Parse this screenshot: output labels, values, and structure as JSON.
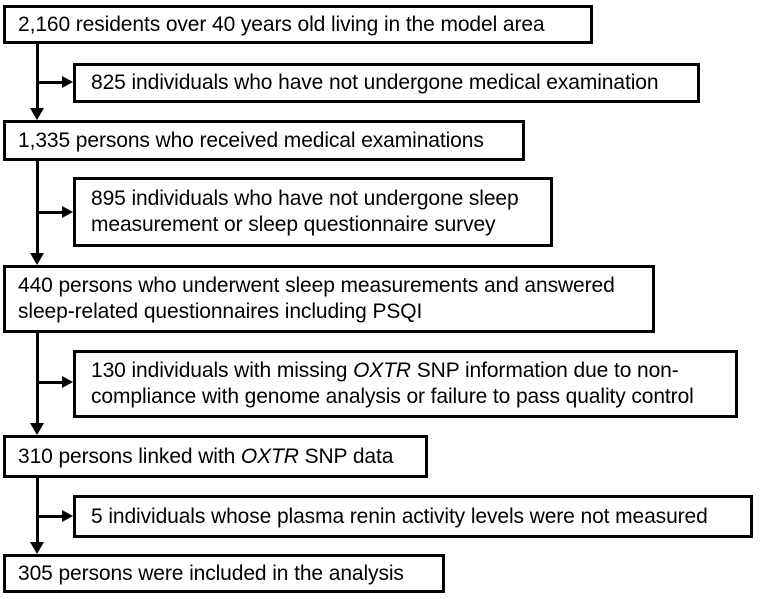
{
  "figure": {
    "type": "participant-flow-diagram",
    "background_color": "#ffffff",
    "line_color": "#000000",
    "main_boxes": [
      {
        "id": "residents",
        "count": "2,160",
        "lines": [
          [
            {
              "t": "2,160 residents over 40 years old living in the model area"
            }
          ]
        ]
      },
      {
        "id": "examined",
        "count": "1,335",
        "lines": [
          [
            {
              "t": "1,335 persons who received medical examinations"
            }
          ]
        ]
      },
      {
        "id": "sleep-measured",
        "count": "440",
        "lines": [
          [
            {
              "t": "440 persons who underwent sleep measurements and answered"
            }
          ],
          [
            {
              "t": "sleep-related questionnaires including PSQI"
            }
          ]
        ]
      },
      {
        "id": "snp-linked",
        "count": "310",
        "lines": [
          [
            {
              "t": "310 persons linked with "
            },
            {
              "t": "OXTR",
              "i": true
            },
            {
              "t": " SNP data"
            }
          ]
        ]
      },
      {
        "id": "analyzed",
        "count": "305",
        "lines": [
          [
            {
              "t": "305 persons were included in the analysis"
            }
          ]
        ]
      }
    ],
    "exclusion_boxes": [
      {
        "id": "no-medical-exam",
        "count": "825",
        "lines": [
          [
            {
              "t": "825 individuals who have not undergone medical examination"
            }
          ]
        ]
      },
      {
        "id": "no-sleep-measurement",
        "count": "895",
        "lines": [
          [
            {
              "t": "895 individuals who have not undergone sleep"
            }
          ],
          [
            {
              "t": "measurement or sleep questionnaire survey"
            }
          ]
        ]
      },
      {
        "id": "missing-oxtr-snp",
        "count": "130",
        "lines": [
          [
            {
              "t": "130 individuals with missing "
            },
            {
              "t": "OXTR",
              "i": true
            },
            {
              "t": " SNP information due to non-"
            }
          ],
          [
            {
              "t": "compliance with genome analysis or failure to pass quality control"
            }
          ]
        ]
      },
      {
        "id": "no-renin-measurement",
        "count": "5",
        "lines": [
          [
            {
              "t": "5 individuals whose plasma renin activity levels were not measured"
            }
          ]
        ]
      }
    ]
  }
}
